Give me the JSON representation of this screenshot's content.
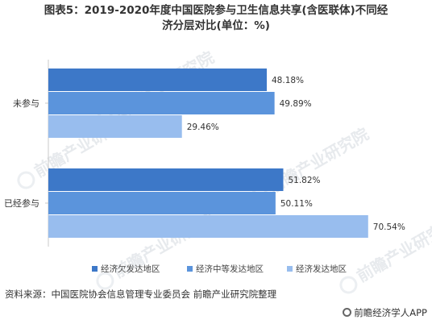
{
  "title": {
    "line1": "图表5：2019-2020年度中国医院参与卫生信息共享(含医联体)不同经",
    "line2": "济分层对比(单位：%)"
  },
  "chart_data": {
    "type": "bar",
    "orientation": "horizontal",
    "categories": [
      "未参与",
      "已经参与"
    ],
    "series": [
      {
        "name": "经济欠发达地区",
        "values": [
          48.18,
          51.82
        ],
        "labels": [
          "48.18%",
          "51.82%"
        ],
        "color": "#3d78c8"
      },
      {
        "name": "经济中等发达地区",
        "values": [
          49.89,
          50.11
        ],
        "labels": [
          "49.89%",
          "50.11%"
        ],
        "color": "#5b94dc"
      },
      {
        "name": "经济发达地区",
        "values": [
          29.46,
          70.54
        ],
        "labels": [
          "29.46%",
          "70.54%"
        ],
        "color": "#98bdee"
      }
    ],
    "xlim": [
      0,
      80
    ],
    "legend_position": "bottom",
    "grid": false
  },
  "watermark": "前瞻产业研究院",
  "source": "资料来源：中国医院协会信息管理专业委员会 前瞻产业研究院整理",
  "brand": "前瞻经济学人APP"
}
